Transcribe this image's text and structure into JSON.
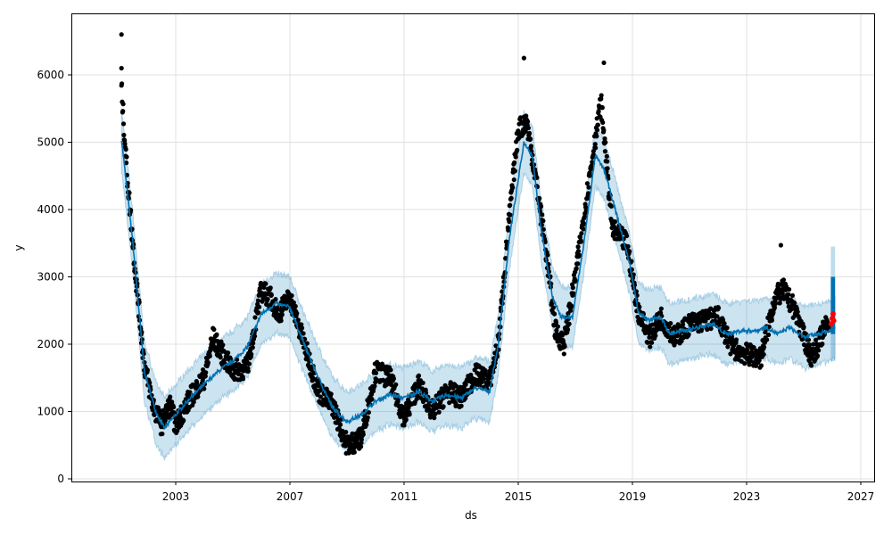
{
  "chart_data": {
    "type": "scatter",
    "title": "",
    "xlabel": "ds",
    "ylabel": "y",
    "xlim": [
      2000.0,
      2027.5
    ],
    "ylim": [
      -100,
      6850
    ],
    "x_ticks": [
      "2003",
      "2007",
      "2011",
      "2015",
      "2019",
      "2023",
      "2027"
    ],
    "x_tick_values": [
      2003,
      2007,
      2011,
      2015,
      2019,
      2023,
      2027
    ],
    "y_ticks": [
      "0",
      "1000",
      "2000",
      "3000",
      "4000",
      "5000",
      "6000"
    ],
    "y_tick_values": [
      0,
      1000,
      2000,
      3000,
      4000,
      5000,
      6000
    ],
    "grid": true,
    "colors": {
      "forecast": "#0072b2",
      "band": "#0072b2",
      "observed": "#000000",
      "highlight": "#ff0000"
    },
    "forecast_yhat": [
      [
        2001.1,
        5050
      ],
      [
        2001.5,
        3500
      ],
      [
        2001.9,
        1600
      ],
      [
        2002.3,
        1000
      ],
      [
        2002.6,
        750
      ],
      [
        2003.0,
        950
      ],
      [
        2003.5,
        1200
      ],
      [
        2004.0,
        1400
      ],
      [
        2004.5,
        1600
      ],
      [
        2005.0,
        1750
      ],
      [
        2005.5,
        1950
      ],
      [
        2006.0,
        2450
      ],
      [
        2006.5,
        2600
      ],
      [
        2007.0,
        2550
      ],
      [
        2007.5,
        2000
      ],
      [
        2008.0,
        1500
      ],
      [
        2008.5,
        1050
      ],
      [
        2009.0,
        850
      ],
      [
        2009.5,
        950
      ],
      [
        2010.0,
        1150
      ],
      [
        2010.5,
        1250
      ],
      [
        2011.0,
        1200
      ],
      [
        2011.5,
        1300
      ],
      [
        2012.0,
        1150
      ],
      [
        2012.5,
        1250
      ],
      [
        2013.0,
        1200
      ],
      [
        2013.5,
        1350
      ],
      [
        2014.0,
        1300
      ],
      [
        2014.3,
        2000
      ],
      [
        2014.7,
        3600
      ],
      [
        2015.2,
        5000
      ],
      [
        2015.5,
        4800
      ],
      [
        2015.8,
        3700
      ],
      [
        2016.2,
        2700
      ],
      [
        2016.5,
        2400
      ],
      [
        2016.9,
        2400
      ],
      [
        2017.3,
        3500
      ],
      [
        2017.7,
        4800
      ],
      [
        2018.0,
        4600
      ],
      [
        2018.4,
        4000
      ],
      [
        2018.9,
        3200
      ],
      [
        2019.2,
        2500
      ],
      [
        2019.5,
        2350
      ],
      [
        2020.0,
        2400
      ],
      [
        2020.3,
        2150
      ],
      [
        2020.8,
        2200
      ],
      [
        2021.3,
        2250
      ],
      [
        2021.8,
        2300
      ],
      [
        2022.3,
        2150
      ],
      [
        2022.8,
        2200
      ],
      [
        2023.3,
        2200
      ],
      [
        2023.7,
        2250
      ],
      [
        2024.1,
        2150
      ],
      [
        2024.5,
        2250
      ],
      [
        2025.0,
        2100
      ],
      [
        2025.5,
        2150
      ],
      [
        2025.9,
        2200
      ],
      [
        2026.1,
        2250
      ]
    ],
    "uncertainty_halfwidth": 450,
    "observed_trend": [
      [
        2001.1,
        5800
      ],
      [
        2001.3,
        4500
      ],
      [
        2001.6,
        3000
      ],
      [
        2001.9,
        1700
      ],
      [
        2002.2,
        1100
      ],
      [
        2002.5,
        800
      ],
      [
        2002.8,
        1100
      ],
      [
        2003.0,
        800
      ],
      [
        2003.5,
        1200
      ],
      [
        2004.0,
        1500
      ],
      [
        2004.3,
        2100
      ],
      [
        2004.7,
        1800
      ],
      [
        2005.0,
        1600
      ],
      [
        2005.5,
        1650
      ],
      [
        2006.0,
        2800
      ],
      [
        2006.3,
        2700
      ],
      [
        2006.6,
        2450
      ],
      [
        2007.0,
        2700
      ],
      [
        2007.5,
        2000
      ],
      [
        2008.0,
        1300
      ],
      [
        2008.5,
        1100
      ],
      [
        2009.0,
        500
      ],
      [
        2009.5,
        600
      ],
      [
        2010.0,
        1600
      ],
      [
        2010.5,
        1500
      ],
      [
        2011.0,
        900
      ],
      [
        2011.5,
        1400
      ],
      [
        2012.0,
        1000
      ],
      [
        2012.5,
        1300
      ],
      [
        2013.0,
        1200
      ],
      [
        2013.5,
        1550
      ],
      [
        2014.0,
        1450
      ],
      [
        2014.3,
        2000
      ],
      [
        2014.6,
        3500
      ],
      [
        2015.0,
        5200
      ],
      [
        2015.3,
        5300
      ],
      [
        2015.6,
        4500
      ],
      [
        2016.0,
        3300
      ],
      [
        2016.3,
        2200
      ],
      [
        2016.6,
        2000
      ],
      [
        2017.0,
        3000
      ],
      [
        2017.5,
        4500
      ],
      [
        2017.9,
        5600
      ],
      [
        2018.3,
        3700
      ],
      [
        2018.8,
        3500
      ],
      [
        2019.2,
        2500
      ],
      [
        2019.6,
        2100
      ],
      [
        2020.0,
        2400
      ],
      [
        2020.5,
        2100
      ],
      [
        2021.0,
        2300
      ],
      [
        2021.5,
        2350
      ],
      [
        2022.0,
        2400
      ],
      [
        2022.5,
        1950
      ],
      [
        2023.0,
        1850
      ],
      [
        2023.5,
        1800
      ],
      [
        2024.0,
        2700
      ],
      [
        2024.3,
        2800
      ],
      [
        2024.7,
        2500
      ],
      [
        2025.0,
        2100
      ],
      [
        2025.3,
        1800
      ],
      [
        2025.7,
        2200
      ],
      [
        2025.9,
        2350
      ]
    ],
    "observed_outliers": [
      [
        2001.1,
        6600
      ],
      [
        2001.1,
        6100
      ],
      [
        2015.2,
        6250
      ],
      [
        2018.0,
        6180
      ],
      [
        2024.2,
        3470
      ]
    ],
    "forecast_future": {
      "x_range": [
        2025.95,
        2026.1
      ],
      "yhat_range": [
        2150,
        3000
      ],
      "upper": 3450,
      "lower": 1750
    },
    "highlight_points": [
      [
        2025.97,
        2300
      ],
      [
        2026.0,
        2380
      ],
      [
        2026.03,
        2450
      ],
      [
        2026.05,
        2350
      ]
    ]
  }
}
